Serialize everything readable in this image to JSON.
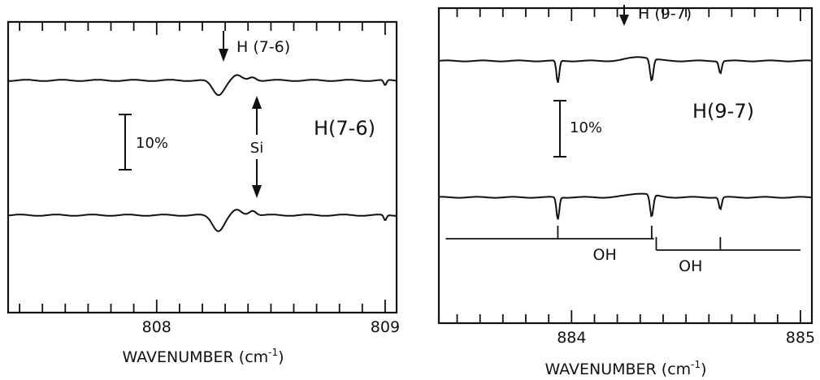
{
  "colors": {
    "ink": "#111111",
    "background": "#ffffff"
  },
  "chart_data": [
    {
      "type": "line",
      "xlabel": "WAVENUMBER (cm",
      "xlabel_sup": "-1",
      "xlabel_close": ")",
      "xlim": [
        807.35,
        809.05
      ],
      "tick_labels": [
        {
          "x": 808,
          "label": "808"
        },
        {
          "x": 809,
          "label": "809"
        }
      ],
      "minor_tick_step": 0.1,
      "trace_label": "H(7-6)",
      "scale_bar_label": "10%",
      "scale_bar_value": 10,
      "arrow_annotations": [
        {
          "label": "H (7-6)",
          "x": 808.3
        }
      ],
      "double_arrow_annotations": [
        {
          "label": "Si",
          "x": 808.42
        }
      ],
      "series": [
        {
          "offset": 0,
          "features": [
            {
              "x": 808.27,
              "depth": 2.6,
              "width": 0.025
            },
            {
              "x": 808.35,
              "depth": -0.9,
              "width": 0.02
            },
            {
              "x": 808.42,
              "depth": -0.6,
              "width": 0.015
            },
            {
              "x": 809.0,
              "depth": 1.0,
              "width": 0.006
            }
          ]
        },
        {
          "offset": -33.5,
          "features": [
            {
              "x": 808.27,
              "depth": 2.8,
              "width": 0.025
            },
            {
              "x": 808.35,
              "depth": -0.9,
              "width": 0.02
            },
            {
              "x": 808.42,
              "depth": -0.9,
              "width": 0.015
            },
            {
              "x": 809.0,
              "depth": 1.0,
              "width": 0.006
            }
          ]
        }
      ]
    },
    {
      "type": "line",
      "xlabel": "WAVENUMBER (cm",
      "xlabel_sup": "-1",
      "xlabel_close": ")",
      "xlim": [
        883.42,
        885.05
      ],
      "tick_labels": [
        {
          "x": 884,
          "label": "884"
        },
        {
          "x": 885,
          "label": "885"
        }
      ],
      "minor_tick_step": 0.1,
      "trace_label": "H(9-7)",
      "scale_bar_label": "10%",
      "scale_bar_value": 10,
      "arrow_annotations": [
        {
          "label": "H (9-7)",
          "x": 884.31
        }
      ],
      "line_groups": [
        {
          "label": "OH",
          "x_start": 883.45,
          "x_end": 884.36,
          "marks": [
            883.94,
            884.35
          ]
        },
        {
          "label": "OH",
          "x_start": 884.37,
          "x_end": 885.0,
          "marks": [
            884.37,
            884.65
          ]
        }
      ],
      "series": [
        {
          "offset": 0,
          "features": [
            {
              "x": 883.94,
              "depth": 5.5,
              "width": 0.006
            },
            {
              "x": 884.35,
              "depth": 5.5,
              "width": 0.007
            },
            {
              "x": 884.65,
              "depth": 3.0,
              "width": 0.006
            },
            {
              "x": 884.3,
              "depth": -1.0,
              "width": 0.05
            }
          ]
        },
        {
          "offset": -33.5,
          "features": [
            {
              "x": 883.94,
              "depth": 5.5,
              "width": 0.006
            },
            {
              "x": 884.35,
              "depth": 5.5,
              "width": 0.007
            },
            {
              "x": 884.65,
              "depth": 3.0,
              "width": 0.006
            },
            {
              "x": 884.3,
              "depth": -1.0,
              "width": 0.05
            }
          ]
        }
      ]
    }
  ]
}
